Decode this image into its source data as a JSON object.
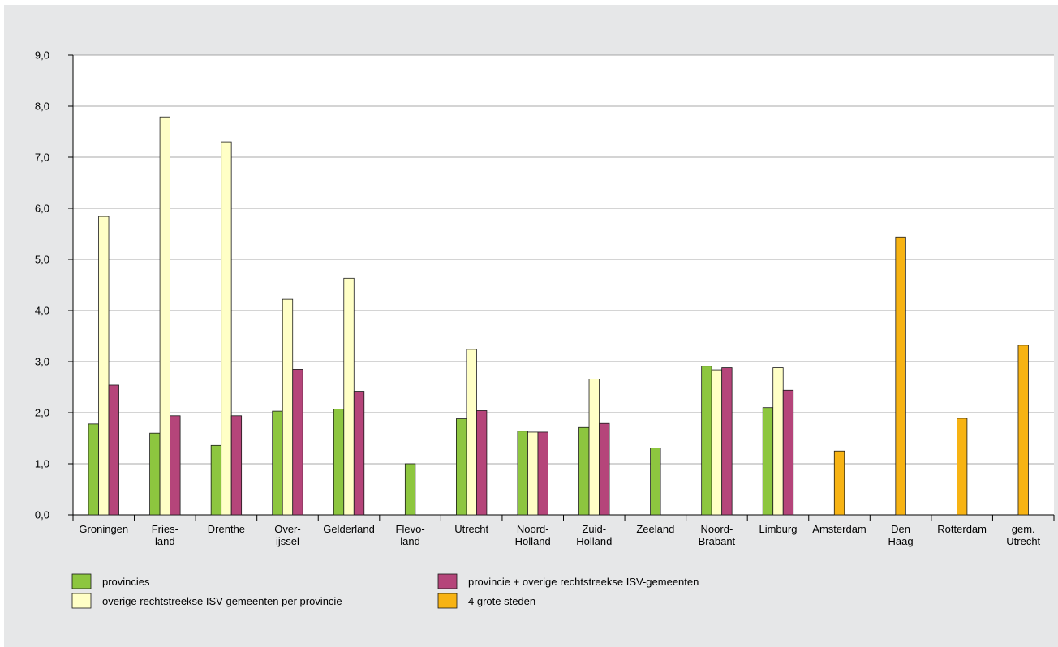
{
  "chart_data": {
    "type": "bar",
    "ylim": [
      0,
      9
    ],
    "grid": true,
    "y_ticks": [
      "0,0",
      "1,0",
      "2,0",
      "3,0",
      "4,0",
      "5,0",
      "6,0",
      "7,0",
      "8,0",
      "9,0"
    ],
    "categories": [
      [
        "Groningen"
      ],
      [
        "Fries-",
        "land"
      ],
      [
        "Drenthe"
      ],
      [
        "Over-",
        "ijssel"
      ],
      [
        "Gelderland"
      ],
      [
        "Flevo-",
        "land"
      ],
      [
        "Utrecht"
      ],
      [
        "Noord-",
        "Holland"
      ],
      [
        "Zuid-",
        "Holland"
      ],
      [
        "Zeeland"
      ],
      [
        "Noord-",
        "Brabant"
      ],
      [
        "Limburg"
      ],
      [
        "Amsterdam"
      ],
      [
        "Den",
        "Haag"
      ],
      [
        "Rotterdam"
      ],
      [
        "gem.",
        "Utrecht"
      ]
    ],
    "series": [
      {
        "name": "provincies",
        "color": "#8dc63f",
        "values": [
          1.78,
          1.6,
          1.36,
          2.03,
          2.07,
          1.0,
          1.88,
          1.64,
          1.71,
          1.31,
          2.91,
          2.1,
          null,
          null,
          null,
          null
        ]
      },
      {
        "name": "overige rechtstreekse ISV-gemeenten per provincie",
        "color": "#ffffc6",
        "values": [
          5.84,
          7.79,
          7.3,
          4.22,
          4.63,
          null,
          3.24,
          1.62,
          2.66,
          null,
          2.84,
          2.88,
          null,
          null,
          null,
          null
        ]
      },
      {
        "name": "provincie + overige rechtstreekse ISV-gemeenten",
        "color": "#b5457a",
        "values": [
          2.54,
          1.94,
          1.94,
          2.85,
          2.42,
          null,
          2.04,
          1.62,
          1.79,
          null,
          2.88,
          2.44,
          null,
          null,
          null,
          null
        ]
      },
      {
        "name": "4 grote steden",
        "color": "#f7b313",
        "values": [
          null,
          null,
          null,
          null,
          null,
          null,
          null,
          null,
          null,
          null,
          null,
          null,
          1.25,
          5.44,
          1.89,
          3.32
        ]
      }
    ],
    "legend": {
      "placement": "bottom",
      "order": [
        0,
        2,
        1,
        3
      ]
    }
  }
}
